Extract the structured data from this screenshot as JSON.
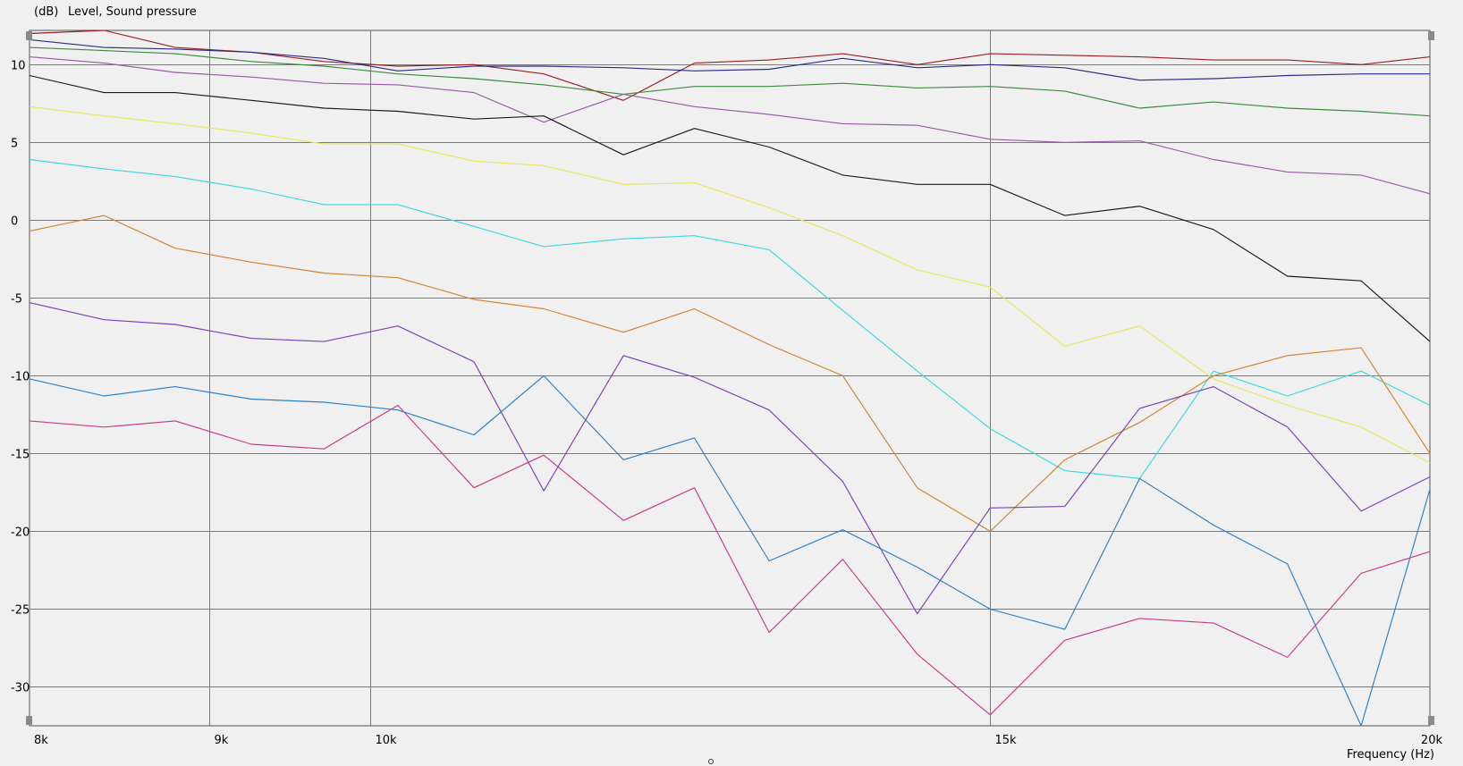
{
  "chart_data": {
    "type": "line",
    "title": "Level, Sound pressure",
    "ylabel": "(dB)",
    "xlabel": "Frequency  (Hz)",
    "x_scale": "log",
    "xlim": [
      8000,
      20000
    ],
    "ylim": [
      -32.5,
      12.2
    ],
    "y_ticks": [
      10,
      5,
      0,
      -5,
      -10,
      -15,
      -20,
      -25,
      -30
    ],
    "x_ticks": [
      {
        "value": 8000,
        "label": "8k"
      },
      {
        "value": 9000,
        "label": "9k"
      },
      {
        "value": 10000,
        "label": "10k"
      },
      {
        "value": 15000,
        "label": "15k"
      },
      {
        "value": 20000,
        "label": "20k"
      }
    ],
    "grid": true,
    "x": [
      8000,
      8400,
      8800,
      9250,
      9700,
      10180,
      10700,
      11200,
      11800,
      12360,
      12980,
      13620,
      14300,
      15000,
      15750,
      16540,
      17360,
      18220,
      19120,
      20000
    ],
    "series": [
      {
        "color": "#9a2020",
        "values": [
          12.0,
          12.2,
          11.1,
          10.8,
          10.2,
          9.9,
          10.0,
          9.4,
          7.7,
          10.1,
          10.3,
          10.7,
          10.0,
          10.7,
          10.6,
          10.5,
          10.3,
          10.3,
          10.0,
          10.5
        ]
      },
      {
        "color": "#2b2b8a",
        "values": [
          11.6,
          11.1,
          11.0,
          10.8,
          10.4,
          9.6,
          9.9,
          9.9,
          9.8,
          9.6,
          9.7,
          10.4,
          9.8,
          10.0,
          9.8,
          9.0,
          9.1,
          9.3,
          9.4,
          9.4
        ]
      },
      {
        "color": "#3c8a3c",
        "values": [
          11.1,
          10.9,
          10.7,
          10.2,
          9.9,
          9.4,
          9.1,
          8.7,
          8.1,
          8.6,
          8.6,
          8.8,
          8.5,
          8.6,
          8.3,
          7.2,
          7.6,
          7.2,
          7.0,
          6.7
        ]
      },
      {
        "color": "#9b5aa8",
        "values": [
          10.5,
          10.1,
          9.5,
          9.2,
          8.8,
          8.7,
          8.2,
          6.3,
          8.1,
          7.3,
          6.8,
          6.2,
          6.1,
          5.2,
          5.0,
          5.1,
          3.9,
          3.1,
          2.9,
          1.7
        ]
      },
      {
        "color": "#1a1a1a",
        "values": [
          9.3,
          8.2,
          8.2,
          7.7,
          7.2,
          7.0,
          6.5,
          6.7,
          4.2,
          5.9,
          4.7,
          2.9,
          2.3,
          2.3,
          0.3,
          0.9,
          -0.6,
          -3.6,
          -3.9,
          -7.8
        ]
      },
      {
        "color": "#e8e855",
        "values": [
          7.3,
          6.7,
          6.2,
          5.6,
          4.9,
          4.9,
          3.8,
          3.5,
          2.3,
          2.4,
          0.8,
          -1.0,
          -3.2,
          -4.3,
          -8.1,
          -6.8,
          -10.2,
          -11.9,
          -13.3,
          -15.6
        ]
      },
      {
        "color": "#3cd8e0",
        "values": [
          3.9,
          3.3,
          2.8,
          2.0,
          1.0,
          1.0,
          -0.4,
          -1.7,
          -1.2,
          -1.0,
          -1.9,
          -5.8,
          -9.7,
          -13.4,
          -16.1,
          -16.6,
          -9.7,
          -11.3,
          -9.7,
          -11.9
        ]
      },
      {
        "color": "#d08530",
        "values": [
          -0.7,
          0.3,
          -1.8,
          -2.7,
          -3.4,
          -3.7,
          -5.1,
          -5.7,
          -7.2,
          -5.7,
          -8.0,
          -10.0,
          -17.2,
          -20.0,
          -15.4,
          -13.0,
          -10.0,
          -8.7,
          -8.2,
          -15.0
        ]
      },
      {
        "color": "#7a40b8",
        "values": [
          -5.3,
          -6.4,
          -6.7,
          -7.6,
          -7.8,
          -6.8,
          -9.1,
          -17.4,
          -8.7,
          -10.1,
          -12.2,
          -16.8,
          -25.3,
          -18.5,
          -18.4,
          -12.1,
          -10.7,
          -13.3,
          -18.7,
          -16.5
        ]
      },
      {
        "color": "#2a7fc8",
        "values": [
          -10.2,
          -11.3,
          -10.7,
          -11.5,
          -11.7,
          -12.2,
          -13.8,
          -10.0,
          -15.4,
          -14.0,
          -21.9,
          -19.9,
          -22.3,
          -25.0,
          -26.3,
          -16.6,
          -19.6,
          -22.1,
          -32.5,
          -17.3
        ]
      },
      {
        "color": "#c83a8a",
        "values": [
          -12.9,
          -13.3,
          -12.9,
          -14.4,
          -14.7,
          -11.9,
          -17.2,
          -15.1,
          -19.3,
          -17.2,
          -26.5,
          -21.8,
          -27.9,
          -31.8,
          -27.0,
          -25.6,
          -25.9,
          -28.1,
          -22.7,
          -21.3
        ]
      }
    ]
  }
}
